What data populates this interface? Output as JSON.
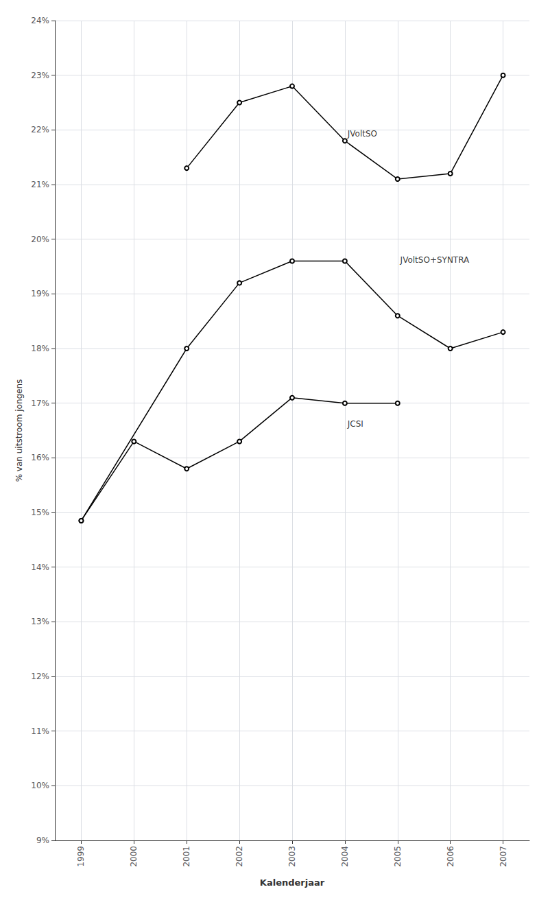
{
  "chart_data": {
    "type": "line",
    "x": [
      1999,
      2000,
      2001,
      2002,
      2003,
      2004,
      2005,
      2006,
      2007
    ],
    "series": [
      {
        "values": [
          null,
          null,
          21.3,
          22.5,
          22.8,
          21.8,
          21.1,
          21.2,
          23.0
        ],
        "color": "#000000",
        "marker": "circle"
      },
      {
        "values": [
          14.85,
          null,
          18.0,
          19.2,
          19.6,
          19.6,
          18.6,
          18.0,
          18.3
        ],
        "color": "#000000",
        "marker": "circle"
      },
      {
        "values": [
          14.85,
          16.3,
          15.8,
          16.3,
          17.1,
          17.0,
          17.0,
          null,
          null
        ],
        "color": "#000000",
        "marker": "circle"
      }
    ],
    "annotations": [
      {
        "text": "JVoltSO",
        "x": 2004.05,
        "y": 21.85
      },
      {
        "text": "JVoltSO+SYNTRA",
        "x": 2005.05,
        "y": 19.55
      },
      {
        "text": "JCSI",
        "x": 2004.05,
        "y": 16.55
      }
    ],
    "xlabel": "Kalenderjaar",
    "ylabel": "% van uitstroom jongens",
    "xlim": [
      1998.5,
      2007.5
    ],
    "xticks": [
      1999,
      2000,
      2001,
      2002,
      2003,
      2004,
      2005,
      2006,
      2007
    ],
    "ylim": [
      9,
      24
    ],
    "yticks": [
      {
        "value": 9,
        "label": "9%"
      },
      {
        "value": 10,
        "label": "10%"
      },
      {
        "value": 11,
        "label": "11%"
      },
      {
        "value": 12,
        "label": "12%"
      },
      {
        "value": 13,
        "label": "13%"
      },
      {
        "value": 14,
        "label": "14%"
      },
      {
        "value": 15,
        "label": "15%"
      },
      {
        "value": 16,
        "label": "16%"
      },
      {
        "value": 17,
        "label": "17%"
      },
      {
        "value": 18,
        "label": "18%"
      },
      {
        "value": 19,
        "label": "19%"
      },
      {
        "value": 20,
        "label": "20%"
      },
      {
        "value": 21,
        "label": "21%"
      },
      {
        "value": 22,
        "label": "22%"
      },
      {
        "value": 23,
        "label": "23%"
      },
      {
        "value": 24,
        "label": "24%"
      }
    ],
    "grid": true
  }
}
